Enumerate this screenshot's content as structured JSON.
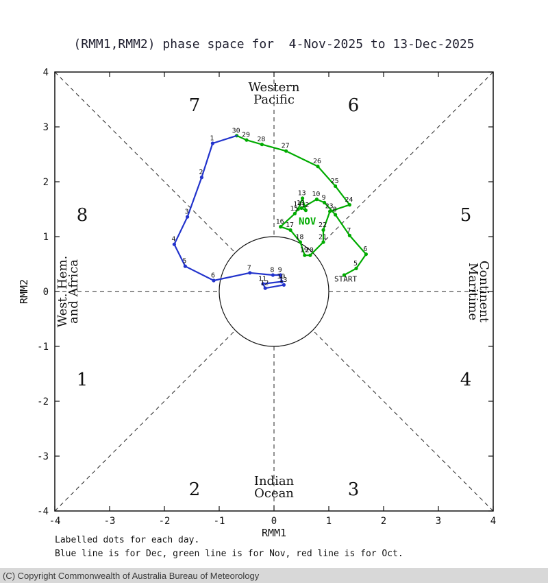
{
  "title": "(RMM1,RMM2) phase space for  4-Nov-2025 to 13-Dec-2025",
  "captions": {
    "line1": "Labelled dots for each day.",
    "line2": "Blue line is for Dec, green line is for Nov, red line is for Oct."
  },
  "footer": "(C) Copyright Commonwealth of Australia Bureau of Meteorology",
  "chart_data": {
    "type": "line",
    "title": "(RMM1,RMM2) phase space for  4-Nov-2025 to 13-Dec-2025",
    "xlabel": "RMM1",
    "ylabel": "RMM2",
    "xlim": [
      -4,
      4
    ],
    "ylim": [
      -4,
      4
    ],
    "ticks": [
      -4,
      -3,
      -2,
      -1,
      0,
      1,
      2,
      3,
      4
    ],
    "unit_circle_radius": 1,
    "grid": "dashed-octants",
    "colors": {
      "nov": "#00ab00",
      "dec": "#2233cc",
      "axis": "#222222"
    },
    "phase_labels": [
      {
        "text": "1",
        "x": -3.5,
        "y": -1.6
      },
      {
        "text": "2",
        "x": -1.45,
        "y": -3.6
      },
      {
        "text": "3",
        "x": 1.45,
        "y": -3.6
      },
      {
        "text": "4",
        "x": 3.5,
        "y": -1.6
      },
      {
        "text": "5",
        "x": 3.5,
        "y": 1.4
      },
      {
        "text": "6",
        "x": 1.45,
        "y": 3.4
      },
      {
        "text": "7",
        "x": -1.45,
        "y": 3.4
      },
      {
        "text": "8",
        "x": -3.5,
        "y": 1.4
      }
    ],
    "region_labels": {
      "top": [
        "Western",
        "Pacific"
      ],
      "bottom": [
        "Indian",
        "Ocean"
      ],
      "right": [
        "Maritime",
        "Continent"
      ],
      "left": [
        "West. Hem.",
        "and Africa"
      ]
    },
    "series": [
      {
        "name": "Nov",
        "color": "#00ab00",
        "month_label": {
          "text": "NOV",
          "x": 0.45,
          "y": 1.22
        },
        "start_label": {
          "text": "START",
          "x": 1.1,
          "y": 0.18
        },
        "points": [
          {
            "day": "",
            "x": 1.28,
            "y": 0.3
          },
          {
            "day": "5",
            "x": 1.5,
            "y": 0.42
          },
          {
            "day": "6",
            "x": 1.68,
            "y": 0.68
          },
          {
            "day": "7",
            "x": 1.38,
            "y": 1.02
          },
          {
            "day": "8",
            "x": 1.12,
            "y": 1.4
          },
          {
            "day": "9",
            "x": 0.92,
            "y": 1.62
          },
          {
            "day": "10",
            "x": 0.78,
            "y": 1.68
          },
          {
            "day": "11",
            "x": 0.5,
            "y": 1.52
          },
          {
            "day": "12",
            "x": 0.58,
            "y": 1.48
          },
          {
            "day": "13",
            "x": 0.52,
            "y": 1.7
          },
          {
            "day": "14",
            "x": 0.44,
            "y": 1.5
          },
          {
            "day": "15",
            "x": 0.38,
            "y": 1.42
          },
          {
            "day": "16",
            "x": 0.12,
            "y": 1.18
          },
          {
            "day": "17",
            "x": 0.3,
            "y": 1.12
          },
          {
            "day": "18",
            "x": 0.48,
            "y": 0.9
          },
          {
            "day": "19",
            "x": 0.56,
            "y": 0.66
          },
          {
            "day": "20",
            "x": 0.66,
            "y": 0.66
          },
          {
            "day": "21",
            "x": 0.9,
            "y": 0.9
          },
          {
            "day": "22",
            "x": 0.9,
            "y": 1.12
          },
          {
            "day": "23",
            "x": 1.02,
            "y": 1.46
          },
          {
            "day": "24",
            "x": 1.38,
            "y": 1.58
          },
          {
            "day": "25",
            "x": 1.12,
            "y": 1.92
          },
          {
            "day": "26",
            "x": 0.8,
            "y": 2.28
          },
          {
            "day": "27",
            "x": 0.22,
            "y": 2.56
          },
          {
            "day": "28",
            "x": -0.22,
            "y": 2.68
          },
          {
            "day": "29",
            "x": -0.5,
            "y": 2.76
          },
          {
            "day": "30",
            "x": -0.68,
            "y": 2.84
          }
        ]
      },
      {
        "name": "Dec",
        "color": "#2233cc",
        "connects_to_previous": true,
        "points": [
          {
            "day": "1",
            "x": -1.12,
            "y": 2.7
          },
          {
            "day": "2",
            "x": -1.32,
            "y": 2.08
          },
          {
            "day": "3",
            "x": -1.58,
            "y": 1.36
          },
          {
            "day": "4",
            "x": -1.82,
            "y": 0.86
          },
          {
            "day": "5",
            "x": -1.62,
            "y": 0.46
          },
          {
            "day": "6",
            "x": -1.1,
            "y": 0.2
          },
          {
            "day": "7",
            "x": -0.44,
            "y": 0.34
          },
          {
            "day": "8",
            "x": -0.02,
            "y": 0.3
          },
          {
            "day": "9",
            "x": 0.12,
            "y": 0.3
          },
          {
            "day": "10",
            "x": 0.14,
            "y": 0.18
          },
          {
            "day": "11",
            "x": -0.2,
            "y": 0.14
          },
          {
            "day": "12",
            "x": -0.16,
            "y": 0.06
          },
          {
            "day": "13",
            "x": 0.18,
            "y": 0.12
          }
        ]
      }
    ]
  }
}
